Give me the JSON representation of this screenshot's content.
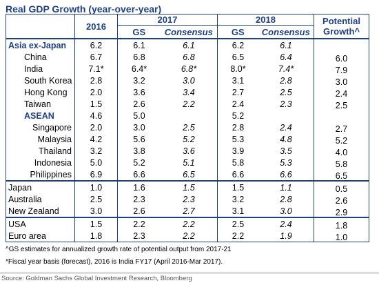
{
  "title": "Real GDP Growth (year-over-year)",
  "header": {
    "col_2016": "2016",
    "year_2017": "2017",
    "year_2018": "2018",
    "gs": "GS",
    "consensus": "Consensus",
    "potential_line1": "Potential",
    "potential_line2": "Growth^"
  },
  "sections": [
    {
      "rows": [
        {
          "label": "Asia ex-Japan",
          "style": "bold-blue",
          "indent": 0,
          "v2016": "6.2",
          "gs17": "6.1",
          "co17": "6.1",
          "gs18": "6.2",
          "co18": "6.1",
          "pot": ""
        },
        {
          "label": "China",
          "indent": 1,
          "v2016": "6.7",
          "gs17": "6.8",
          "co17": "6.8",
          "gs18": "6.5",
          "co18": "6.4",
          "pot": "6.0"
        },
        {
          "label": "India",
          "indent": 1,
          "v2016": "7.1*",
          "gs17": "6.4*",
          "co17": "6.8*",
          "gs18": "8.0*",
          "co18": "7.4*",
          "pot": "7.9"
        },
        {
          "label": "South Korea",
          "indent": 1,
          "v2016": "2.8",
          "gs17": "3.2",
          "co17": "3.0",
          "gs18": "3.1",
          "co18": "2.8",
          "pot": "3.0"
        },
        {
          "label": "Hong Kong",
          "indent": 1,
          "v2016": "2.0",
          "gs17": "3.6",
          "co17": "3.4",
          "gs18": "2.7",
          "co18": "2.5",
          "pot": "2.4"
        },
        {
          "label": "Taiwan",
          "indent": 1,
          "v2016": "1.5",
          "gs17": "2.6",
          "co17": "2.2",
          "gs18": "2.4",
          "co18": "2.3",
          "pot": "2.5"
        },
        {
          "label": "ASEAN",
          "style": "bold-blue",
          "indent": 1,
          "v2016": "4.6",
          "gs17": "5.0",
          "co17": "",
          "gs18": "5.2",
          "co18": "",
          "pot": ""
        },
        {
          "label": "Singapore",
          "indent": 2,
          "v2016": "2.0",
          "gs17": "3.0",
          "co17": "2.5",
          "gs18": "2.8",
          "co18": "2.4",
          "pot": "2.7"
        },
        {
          "label": "Malaysia",
          "indent": 2,
          "v2016": "4.2",
          "gs17": "5.6",
          "co17": "5.2",
          "gs18": "5.3",
          "co18": "4.8",
          "pot": "5.2"
        },
        {
          "label": "Thailand",
          "indent": 2,
          "v2016": "3.2",
          "gs17": "3.8",
          "co17": "3.6",
          "gs18": "3.9",
          "co18": "3.5",
          "pot": "4.0"
        },
        {
          "label": "Indonesia",
          "indent": 2,
          "v2016": "5.0",
          "gs17": "5.2",
          "co17": "5.1",
          "gs18": "5.8",
          "co18": "5.3",
          "pot": "5.8"
        },
        {
          "label": "Philippines",
          "indent": 2,
          "v2016": "6.9",
          "gs17": "6.6",
          "co17": "6.5",
          "gs18": "6.6",
          "co18": "6.6",
          "pot": "6.5"
        }
      ]
    },
    {
      "rows": [
        {
          "label": "Japan",
          "indent": 0,
          "v2016": "1.0",
          "gs17": "1.6",
          "co17": "1.5",
          "gs18": "1.5",
          "co18": "1.1",
          "pot": "0.5"
        },
        {
          "label": "Australia",
          "indent": 0,
          "v2016": "2.5",
          "gs17": "2.3",
          "co17": "2.3",
          "gs18": "3.2",
          "co18": "2.8",
          "pot": "2.6"
        },
        {
          "label": "New Zealand",
          "indent": 0,
          "v2016": "3.0",
          "gs17": "2.6",
          "co17": "2.7",
          "gs18": "3.1",
          "co18": "3.0",
          "pot": "2.9"
        }
      ]
    },
    {
      "rows": [
        {
          "label": "USA",
          "indent": 0,
          "v2016": "1.5",
          "gs17": "2.2",
          "co17": "2.2",
          "gs18": "2.5",
          "co18": "2.4",
          "pot": "1.8"
        },
        {
          "label": "Euro area",
          "indent": 0,
          "v2016": "1.8",
          "gs17": "2.3",
          "co17": "2.2",
          "gs18": "2.2",
          "co18": "1.9",
          "pot": "1.0"
        }
      ]
    }
  ],
  "notes": [
    "^GS estimates for annualized growth rate of potential output from 2017-21",
    "*Fiscal year basis (forecast), 2016 is India FY17 (April 2016-Mar 2017)."
  ],
  "source": "Source: Goldman Sachs Global Investment Research, Bloomberg",
  "colors": {
    "accent": "#1f3f86"
  }
}
